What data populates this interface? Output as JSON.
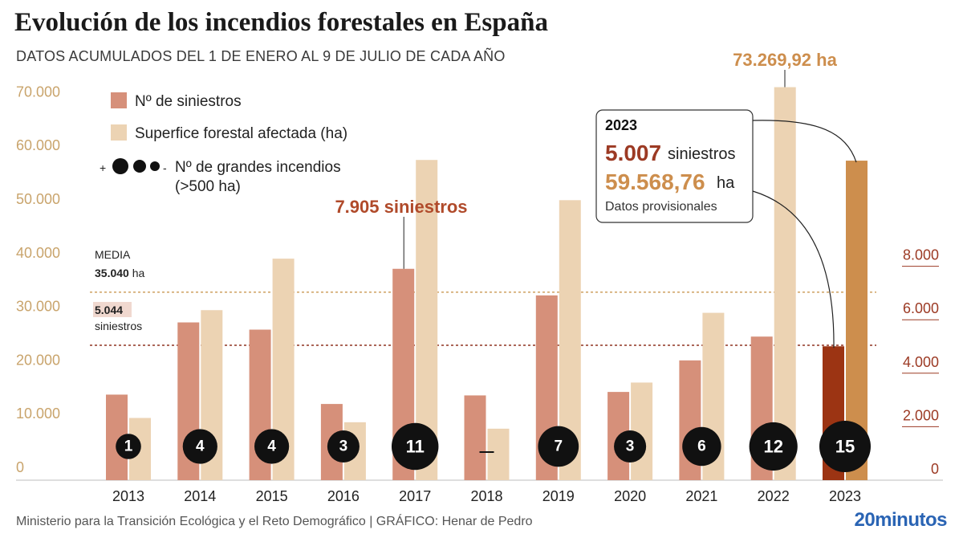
{
  "header": {
    "title": "Evolución de los incendios forestales en España",
    "subtitle": "DATOS ACUMULADOS DEL 1 DE ENERO AL 9 DE JULIO DE CADA AÑO"
  },
  "legend": {
    "siniestros": "Nº de siniestros",
    "superficie": "Superfice forestal afectada (ha)",
    "grandes_plus": "+",
    "grandes_minus": "-",
    "grandes_line1": "Nº de grandes incendios",
    "grandes_line2": "(>500 ha)"
  },
  "media": {
    "label": "MEDIA",
    "ha_value": "35.040",
    "ha_unit": "ha",
    "sin_value": "5.044",
    "sin_unit": "siniestros"
  },
  "annotations": {
    "max_siniestros": "7.905 siniestros",
    "max_superficie": "73.269,92 ha",
    "box_year": "2023",
    "box_siniestros_value": "5.007",
    "box_siniestros_unit": "siniestros",
    "box_ha_value": "59.568,76",
    "box_ha_unit": "ha",
    "box_note": "Datos provisionales"
  },
  "colors": {
    "siniestros": "#d6907a",
    "superficie": "#ecd3b3",
    "siniestros_2023": "#9c3413",
    "superficie_2023": "#cd8e4d",
    "left_axis": "#c9a46c",
    "right_axis": "#9c3a24",
    "media_ha_line": "#cfa062",
    "media_sin_line": "#8f3320"
  },
  "chart_data": {
    "type": "bar",
    "categories": [
      "2013",
      "2014",
      "2015",
      "2016",
      "2017",
      "2018",
      "2019",
      "2020",
      "2021",
      "2022",
      "2023"
    ],
    "series": [
      {
        "name": "Nº de siniestros",
        "axis": "right",
        "values": [
          3200,
          5900,
          5630,
          2850,
          7905,
          3170,
          6910,
          3300,
          4480,
          5370,
          5007
        ]
      },
      {
        "name": "Superfice forestal afectada (ha)",
        "axis": "left",
        "values": [
          11600,
          31700,
          41300,
          10800,
          59700,
          9600,
          52200,
          18200,
          31200,
          73269.92,
          59568.76
        ]
      },
      {
        "name": "Nº de grandes incendios (>500 ha)",
        "values": [
          1,
          4,
          4,
          3,
          11,
          null,
          7,
          3,
          6,
          12,
          15
        ],
        "labels": [
          "1",
          "4",
          "4",
          "3",
          "11",
          "–",
          "7",
          "3",
          "6",
          "12",
          "15"
        ]
      }
    ],
    "left_axis": {
      "ticks": [
        "0",
        "10.000",
        "20.000",
        "30.000",
        "40.000",
        "50.000",
        "60.000",
        "70.000"
      ],
      "ylim": [
        0,
        75000
      ]
    },
    "right_axis": {
      "ticks": [
        "0",
        "2.000",
        "4.000",
        "6.000",
        "8.000"
      ],
      "ylim": [
        0,
        15045
      ]
    },
    "reference_lines": [
      {
        "label": "MEDIA 35.040 ha",
        "axis": "left",
        "value": 35040
      },
      {
        "label": "5.044 siniestros",
        "axis": "right",
        "value": 5044
      }
    ],
    "legend_position": "top-left"
  },
  "footer": {
    "source": "Ministerio para la Transición Ecológica y el Reto Demográfico  |  GRÁFICO: Henar de Pedro",
    "brand": "20minutos"
  }
}
